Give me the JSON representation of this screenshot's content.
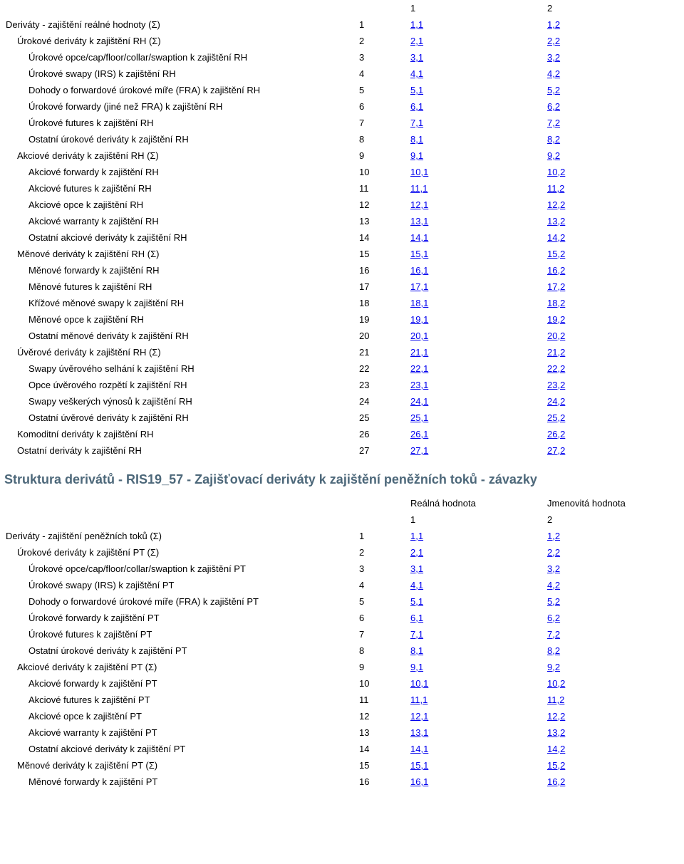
{
  "table1": {
    "header_cols": {
      "col1": "1",
      "col2": "2"
    },
    "rows": [
      {
        "indent": 0,
        "label": "Deriváty - zajištění reálné hodnoty (Σ)",
        "n": "1",
        "c1": "1,1",
        "c2": "1,2"
      },
      {
        "indent": 1,
        "label": "Úrokové deriváty k zajištění RH (Σ)",
        "n": "2",
        "c1": "2,1",
        "c2": "2,2"
      },
      {
        "indent": 2,
        "label": "Úrokové opce/cap/floor/collar/swaption k zajištění RH",
        "n": "3",
        "c1": "3,1",
        "c2": "3,2"
      },
      {
        "indent": 2,
        "label": "Úrokové swapy (IRS) k zajištění RH",
        "n": "4",
        "c1": "4,1",
        "c2": "4,2"
      },
      {
        "indent": 2,
        "label": "Dohody o forwardové úrokové míře (FRA) k zajištění RH",
        "n": "5",
        "c1": "5,1",
        "c2": "5,2"
      },
      {
        "indent": 2,
        "label": "Úrokové forwardy (jiné než FRA) k zajištění RH",
        "n": "6",
        "c1": "6,1",
        "c2": "6,2"
      },
      {
        "indent": 2,
        "label": "Úrokové futures k zajištění RH",
        "n": "7",
        "c1": "7,1",
        "c2": "7,2"
      },
      {
        "indent": 2,
        "label": "Ostatní úrokové deriváty k zajištění RH",
        "n": "8",
        "c1": "8,1",
        "c2": "8,2"
      },
      {
        "indent": 1,
        "label": "Akciové deriváty k zajištění RH (Σ)",
        "n": "9",
        "c1": "9,1",
        "c2": "9,2"
      },
      {
        "indent": 2,
        "label": "Akciové forwardy k zajištění RH",
        "n": "10",
        "c1": "10,1",
        "c2": "10,2"
      },
      {
        "indent": 2,
        "label": "Akciové futures k zajištění RH",
        "n": "11",
        "c1": "11,1",
        "c2": "11,2"
      },
      {
        "indent": 2,
        "label": "Akciové opce k zajištění RH",
        "n": "12",
        "c1": "12,1",
        "c2": "12,2"
      },
      {
        "indent": 2,
        "label": "Akciové warranty k zajištění RH",
        "n": "13",
        "c1": "13,1",
        "c2": "13,2"
      },
      {
        "indent": 2,
        "label": "Ostatní akciové deriváty k zajištění RH",
        "n": "14",
        "c1": "14,1",
        "c2": "14,2"
      },
      {
        "indent": 1,
        "label": "Měnové deriváty k zajištění RH (Σ)",
        "n": "15",
        "c1": "15,1",
        "c2": "15,2"
      },
      {
        "indent": 2,
        "label": "Měnové forwardy k zajištění RH",
        "n": "16",
        "c1": "16,1",
        "c2": "16,2"
      },
      {
        "indent": 2,
        "label": "Měnové futures k zajištění RH",
        "n": "17",
        "c1": "17,1",
        "c2": "17,2"
      },
      {
        "indent": 2,
        "label": "Křížové měnové swapy k zajištění RH",
        "n": "18",
        "c1": "18,1",
        "c2": "18,2"
      },
      {
        "indent": 2,
        "label": "Měnové opce k zajištění RH",
        "n": "19",
        "c1": "19,1",
        "c2": "19,2"
      },
      {
        "indent": 2,
        "label": "Ostatní měnové deriváty k zajištění RH",
        "n": "20",
        "c1": "20,1",
        "c2": "20,2"
      },
      {
        "indent": 1,
        "label": "Úvěrové deriváty k zajištění RH (Σ)",
        "n": "21",
        "c1": "21,1",
        "c2": "21,2"
      },
      {
        "indent": 2,
        "label": "Swapy úvěrového selhání k zajištění RH",
        "n": "22",
        "c1": "22,1",
        "c2": "22,2"
      },
      {
        "indent": 2,
        "label": "Opce úvěrového rozpětí k zajištění RH",
        "n": "23",
        "c1": "23,1",
        "c2": "23,2"
      },
      {
        "indent": 2,
        "label": "Swapy veškerých výnosů k zajištění RH",
        "n": "24",
        "c1": "24,1",
        "c2": "24,2"
      },
      {
        "indent": 2,
        "label": "Ostatní úvěrové deriváty k zajištění RH",
        "n": "25",
        "c1": "25,1",
        "c2": "25,2"
      },
      {
        "indent": 1,
        "label": "Komoditní deriváty k zajištění RH",
        "n": "26",
        "c1": "26,1",
        "c2": "26,2"
      },
      {
        "indent": 1,
        "label": "Ostatní deriváty k zajištění RH",
        "n": "27",
        "c1": "27,1",
        "c2": "27,2"
      }
    ]
  },
  "section2": {
    "title": "Struktura derivátů - RIS19_57 - Zajišťovací deriváty k zajištění peněžních toků - závazky",
    "col_headers": {
      "col1": "Reálná hodnota",
      "col2": "Jmenovitá hodnota"
    },
    "sub_headers": {
      "col1": "1",
      "col2": "2"
    },
    "rows": [
      {
        "indent": 0,
        "label": "Deriváty - zajištění peněžních toků (Σ)",
        "n": "1",
        "c1": "1,1",
        "c2": "1,2"
      },
      {
        "indent": 1,
        "label": "Úrokové deriváty k zajištění PT (Σ)",
        "n": "2",
        "c1": "2,1",
        "c2": "2,2"
      },
      {
        "indent": 2,
        "label": "Úrokové opce/cap/floor/collar/swaption k zajištění PT",
        "n": "3",
        "c1": "3,1",
        "c2": "3,2"
      },
      {
        "indent": 2,
        "label": "Úrokové swapy (IRS) k zajištění PT",
        "n": "4",
        "c1": "4,1",
        "c2": "4,2"
      },
      {
        "indent": 2,
        "label": "Dohody o forwardové úrokové míře (FRA) k zajištění PT",
        "n": "5",
        "c1": "5,1",
        "c2": "5,2"
      },
      {
        "indent": 2,
        "label": "Úrokové forwardy k zajištění PT",
        "n": "6",
        "c1": "6,1",
        "c2": "6,2"
      },
      {
        "indent": 2,
        "label": "Úrokové futures k zajištění PT",
        "n": "7",
        "c1": "7,1",
        "c2": "7,2"
      },
      {
        "indent": 2,
        "label": "Ostatní úrokové deriváty k zajištění PT",
        "n": "8",
        "c1": "8,1",
        "c2": "8,2"
      },
      {
        "indent": 1,
        "label": "Akciové deriváty k zajištění PT (Σ)",
        "n": "9",
        "c1": "9,1",
        "c2": "9,2"
      },
      {
        "indent": 2,
        "label": "Akciové forwardy k zajištění PT",
        "n": "10",
        "c1": "10,1",
        "c2": "10,2"
      },
      {
        "indent": 2,
        "label": "Akciové futures k zajištění PT",
        "n": "11",
        "c1": "11,1",
        "c2": "11,2"
      },
      {
        "indent": 2,
        "label": "Akciové opce k zajištění PT",
        "n": "12",
        "c1": "12,1",
        "c2": "12,2"
      },
      {
        "indent": 2,
        "label": "Akciové warranty k zajištění PT",
        "n": "13",
        "c1": "13,1",
        "c2": "13,2"
      },
      {
        "indent": 2,
        "label": "Ostatní akciové deriváty k zajištění PT",
        "n": "14",
        "c1": "14,1",
        "c2": "14,2"
      },
      {
        "indent": 1,
        "label": "Měnové deriváty k zajištění PT (Σ)",
        "n": "15",
        "c1": "15,1",
        "c2": "15,2"
      },
      {
        "indent": 2,
        "label": "Měnové forwardy k zajištění PT",
        "n": "16",
        "c1": "16,1",
        "c2": "16,2"
      }
    ]
  },
  "style": {
    "link_color": "#0000ee",
    "title_color": "#4d687a",
    "text_color": "#000000",
    "font_family": "Arial, Helvetica, sans-serif",
    "font_size_pt": 10,
    "title_font_size_pt": 14
  }
}
